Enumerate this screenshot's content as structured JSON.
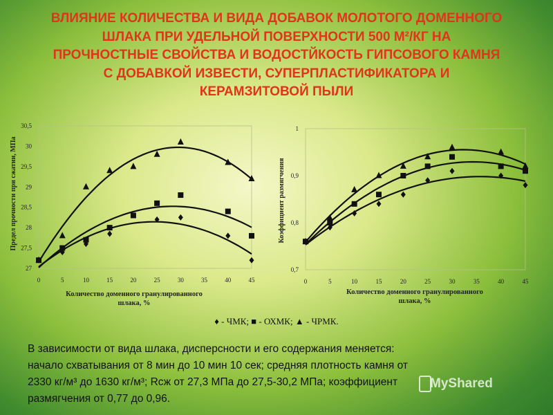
{
  "title": {
    "line1": "ВЛИЯНИЕ КОЛИЧЕСТВА  И ВИДА ДОБАВОК МОЛОТОГО ДОМЕННОГО",
    "line2": "ШЛАКА ПРИ УДЕЛЬНОЙ ПОВЕРХНОСТИ 500 М²/КГ НА",
    "line3": "ПРОЧНОСТНЫЕ СВОЙСТВА И ВОДОСТЙКОСТЬ ГИПСОВОГО КАМНЯ",
    "line4": "С ДОБАВКОЙ ИЗВЕСТИ, СУПЕРПЛАСТИФИКАТОРА И",
    "line5": "КЕРАМЗИТОВОЙ ПЫЛИ"
  },
  "legend": {
    "text": "♦ - ЧМК;  ■ - ОХМК;  ▲ - ЧРМК."
  },
  "body": {
    "line1": "В зависимости от вида шлака, дисперсности и его содержания меняется:",
    "line2": "начало схватывания от 8 мин до 10 мин 10 сек; средняя плотность камня от",
    "line3": "2330 кг/м³ до 1630 кг/м³; Rсж от 27,3 МПа до 27,5-30,2 МПа; коэффициент",
    "line4": "размягчения от 0,77 до 0,96."
  },
  "watermark": "MyShared",
  "colors": {
    "title": "#e0341b",
    "marks": "#111111"
  },
  "chart_data": [
    {
      "type": "scatter",
      "ylabel": "Предел прочности при сжатии, МПа",
      "xlabel": "Количество доменного гранулированного шлака, %",
      "x": [
        0,
        5,
        10,
        15,
        20,
        25,
        30,
        35,
        40,
        45
      ],
      "xticks": [
        "0",
        "5",
        "10",
        "15",
        "20",
        "25",
        "30",
        "35",
        "40",
        "45"
      ],
      "yticks": [
        "27",
        "27,5",
        "28",
        "28,5",
        "29",
        "29,5",
        "30",
        "30,5"
      ],
      "ylim": [
        27,
        30.5
      ],
      "xlim": [
        0,
        45
      ],
      "series": [
        {
          "name": "ЧМК",
          "marker": "diamond",
          "x": [
            0,
            5,
            10,
            15,
            25,
            30,
            40,
            45
          ],
          "values": [
            27.2,
            27.4,
            27.6,
            27.85,
            28.2,
            28.25,
            27.8,
            27.2
          ]
        },
        {
          "name": "ОХМК",
          "marker": "square",
          "x": [
            0,
            5,
            10,
            15,
            20,
            25,
            30,
            40,
            45
          ],
          "values": [
            27.2,
            27.5,
            27.7,
            28.0,
            28.3,
            28.6,
            28.8,
            28.4,
            27.8
          ]
        },
        {
          "name": "ЧРМК",
          "marker": "triangle",
          "x": [
            0,
            5,
            10,
            15,
            20,
            25,
            30,
            40,
            45
          ],
          "values": [
            27.2,
            27.8,
            29.0,
            29.4,
            29.5,
            29.8,
            30.1,
            29.6,
            29.2
          ]
        }
      ]
    },
    {
      "type": "scatter",
      "ylabel": "Коэффициент размягчения",
      "xlabel": "Количество доменного гранулированного шлака, %",
      "x": [
        0,
        5,
        10,
        15,
        20,
        25,
        30,
        35,
        40,
        45
      ],
      "xticks": [
        "0",
        "5",
        "10",
        "15",
        "20",
        "25",
        "30",
        "35",
        "40",
        "45"
      ],
      "yticks": [
        "0,7",
        "0,8",
        "0,9",
        "1"
      ],
      "ylim": [
        0.7,
        1.0
      ],
      "xlim": [
        0,
        45
      ],
      "series": [
        {
          "name": "ЧМК",
          "marker": "diamond",
          "x": [
            0,
            5,
            10,
            15,
            20,
            25,
            30,
            40,
            45
          ],
          "values": [
            0.76,
            0.79,
            0.82,
            0.84,
            0.86,
            0.89,
            0.91,
            0.9,
            0.88
          ]
        },
        {
          "name": "ОХМК",
          "marker": "square",
          "x": [
            0,
            5,
            10,
            15,
            20,
            25,
            30,
            40,
            45
          ],
          "values": [
            0.76,
            0.8,
            0.84,
            0.86,
            0.9,
            0.92,
            0.94,
            0.92,
            0.91
          ]
        },
        {
          "name": "ЧРМК",
          "marker": "triangle",
          "x": [
            0,
            5,
            10,
            15,
            20,
            25,
            30,
            40,
            45
          ],
          "values": [
            0.76,
            0.81,
            0.87,
            0.9,
            0.92,
            0.94,
            0.96,
            0.95,
            0.92
          ]
        }
      ]
    }
  ]
}
